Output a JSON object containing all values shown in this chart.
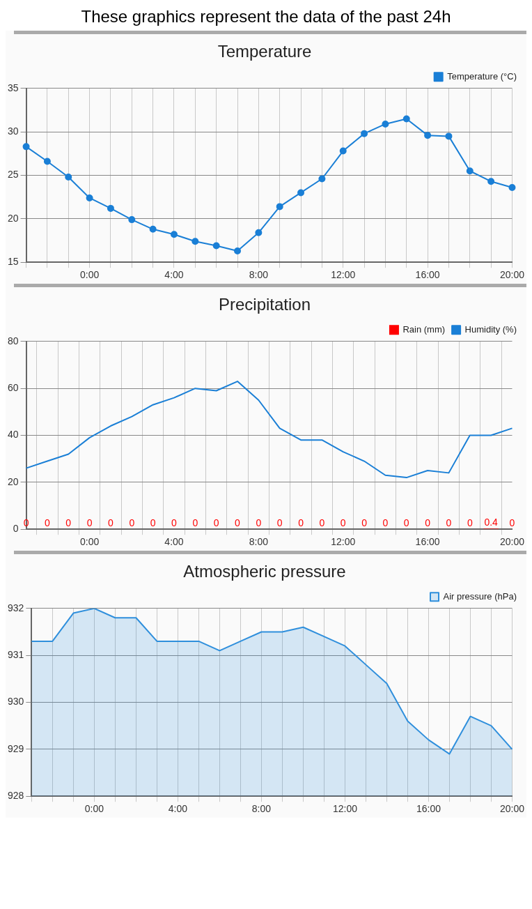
{
  "chart_data": [
    {
      "type": "line",
      "title": "Temperature",
      "annotations": [
        "These graphics represent the data of the past 24h"
      ],
      "categories": [
        null,
        null,
        null,
        "0:00",
        null,
        null,
        null,
        "4:00",
        null,
        null,
        null,
        "8:00",
        null,
        null,
        null,
        "12:00",
        null,
        null,
        null,
        "16:00",
        null,
        null,
        null,
        "20:00"
      ],
      "series": [
        {
          "name": "Temperature (°C)",
          "color": "#1a7fd6",
          "values": [
            28.3,
            26.6,
            24.8,
            22.4,
            21.2,
            19.9,
            18.8,
            18.2,
            17.4,
            16.9,
            16.3,
            18.4,
            21.4,
            23.0,
            24.6,
            27.8,
            29.8,
            30.9,
            31.5,
            29.6,
            29.5,
            25.5,
            24.3,
            23.6
          ]
        }
      ],
      "ylim": [
        15,
        35
      ],
      "yticks": [
        15,
        20,
        25,
        30,
        35
      ],
      "grid": true,
      "legend": "top right",
      "marker": "circle"
    },
    {
      "type": "line",
      "title": "Precipitation",
      "categories": [
        null,
        null,
        null,
        "0:00",
        null,
        null,
        null,
        "4:00",
        null,
        null,
        null,
        "8:00",
        null,
        null,
        null,
        "12:00",
        null,
        null,
        null,
        "16:00",
        null,
        null,
        null,
        "20:00"
      ],
      "series": [
        {
          "name": "Rain (mm)",
          "type": "bar",
          "color": "#ff0000",
          "values": [
            0,
            0,
            0,
            0,
            0,
            0,
            0,
            0,
            0,
            0,
            0,
            0,
            0,
            0,
            0,
            0,
            0,
            0,
            0,
            0,
            0,
            0,
            0.4,
            0
          ],
          "value_labels": [
            "0",
            "0",
            "0",
            "0",
            "0",
            "0",
            "0",
            "0",
            "0",
            "0",
            "0",
            "0",
            "0",
            "0",
            "0",
            "0",
            "0",
            "0",
            "0",
            "0",
            "0",
            "0",
            "0.4",
            "0"
          ]
        },
        {
          "name": "Humidity (%)",
          "color": "#1a7fd6",
          "values": [
            26,
            29,
            32,
            39,
            44,
            48,
            53,
            56,
            60,
            59,
            63,
            55,
            43,
            38,
            38,
            33,
            29,
            23,
            22,
            25,
            24,
            40,
            40,
            43
          ]
        }
      ],
      "ylim": [
        0,
        80
      ],
      "yticks": [
        0,
        20,
        40,
        60,
        80
      ],
      "grid": true,
      "legend": "top right"
    },
    {
      "type": "area",
      "title": "Atmospheric pressure",
      "categories": [
        null,
        null,
        null,
        "0:00",
        null,
        null,
        null,
        "4:00",
        null,
        null,
        null,
        "8:00",
        null,
        null,
        null,
        "12:00",
        null,
        null,
        null,
        "16:00",
        null,
        null,
        null,
        "20:00"
      ],
      "series": [
        {
          "name": "Air pressure (hPa)",
          "color": "#2f8fdc",
          "values": [
            931.3,
            931.3,
            931.9,
            932.0,
            931.8,
            931.8,
            931.3,
            931.3,
            931.3,
            931.1,
            931.3,
            931.5,
            931.5,
            931.6,
            931.4,
            931.2,
            930.8,
            930.4,
            929.6,
            929.2,
            928.9,
            929.7,
            929.5,
            929.0
          ]
        }
      ],
      "ylim": [
        928,
        932
      ],
      "yticks": [
        928,
        929,
        930,
        931,
        932
      ],
      "grid": true,
      "legend": "top right"
    }
  ]
}
